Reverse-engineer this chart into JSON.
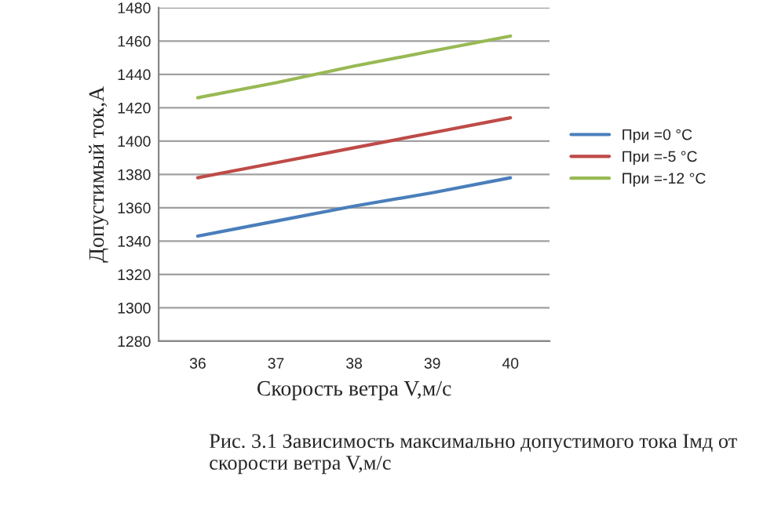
{
  "chart_data": {
    "type": "line",
    "xlabel": "Скорость ветра V,м/с",
    "ylabel": "Допустимый ток,А",
    "categories": [
      "36",
      "37",
      "38",
      "39",
      "40"
    ],
    "series": [
      {
        "name": "При =0 °С",
        "color": "#4a7ebb",
        "values": [
          1343,
          1352,
          1361,
          1369,
          1378
        ]
      },
      {
        "name": "При =-5 °С",
        "color": "#be4b48",
        "values": [
          1378,
          1387,
          1396,
          1405,
          1414
        ]
      },
      {
        "name": "При =-12 °С",
        "color": "#98b954",
        "values": [
          1426,
          1435,
          1445,
          1454,
          1463
        ]
      }
    ],
    "ylim": [
      1280,
      1480
    ],
    "yticks": [
      1280,
      1300,
      1320,
      1340,
      1360,
      1380,
      1400,
      1420,
      1440,
      1460,
      1480
    ],
    "grid": "y",
    "legend": "right",
    "marker": "none",
    "line_style": "solid",
    "annotations": [
      "Рис. 3.1 Зависимость максимально допустимого тока Iмд от скорости ветра V,м/с"
    ]
  }
}
